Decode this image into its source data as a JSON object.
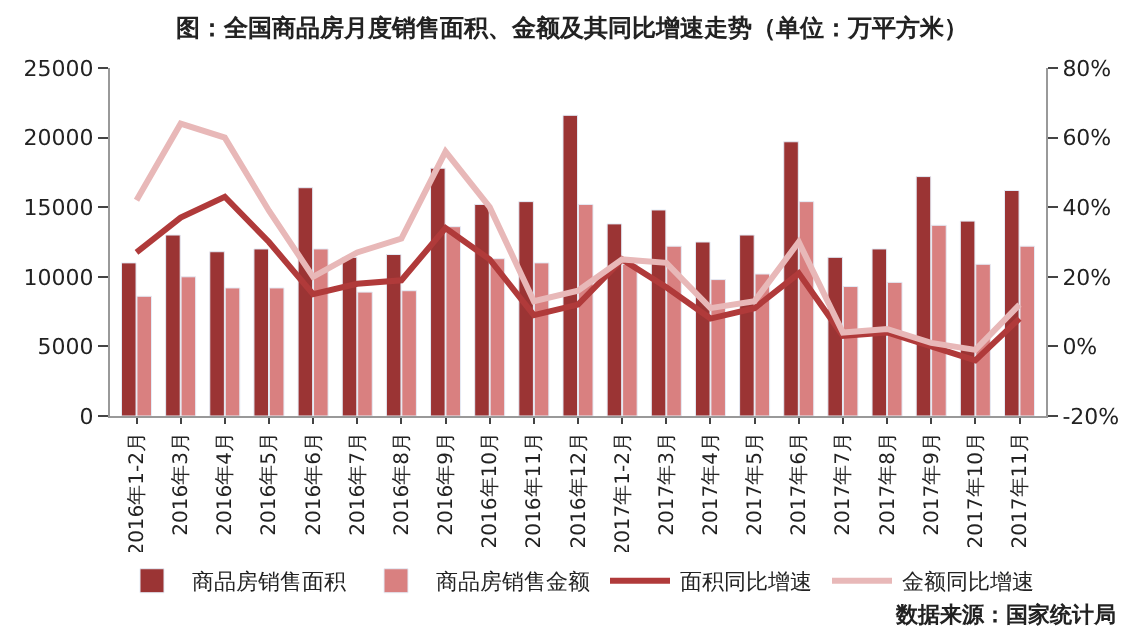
{
  "chart_data": {
    "type": "bar",
    "title": "图：全国商品房月度销售面积、金额及其同比增速走势（单位：万平方米）",
    "categories": [
      "2016年1-2月",
      "2016年3月",
      "2016年4月",
      "2016年5月",
      "2016年6月",
      "2016年7月",
      "2016年8月",
      "2016年9月",
      "2016年10月",
      "2016年11月",
      "2016年12月",
      "2017年1-2月",
      "2017年3月",
      "2017年4月",
      "2017年5月",
      "2017年6月",
      "2017年7月",
      "2017年8月",
      "2017年9月",
      "2017年10月",
      "2017年11月"
    ],
    "series": [
      {
        "name": "商品房销售面积",
        "color": "#9b3434",
        "values": [
          11000,
          13000,
          11800,
          12000,
          16400,
          11400,
          11600,
          17800,
          15200,
          15400,
          21600,
          13800,
          14800,
          12500,
          13000,
          19700,
          11400,
          12000,
          17200,
          14000,
          16200
        ]
      },
      {
        "name": "商品房销售金额",
        "color": "#d98080",
        "values": [
          8600,
          10000,
          9200,
          9200,
          12000,
          8900,
          9000,
          13600,
          11300,
          11000,
          15200,
          10900,
          12200,
          9800,
          10200,
          15400,
          9300,
          9600,
          13700,
          10900,
          12200
        ]
      },
      {
        "name": "面积同比增速",
        "type": "line",
        "axis": "y2",
        "color": "#b03a3a",
        "values": [
          27,
          37,
          43,
          30,
          15,
          18,
          19,
          34,
          25,
          9,
          12,
          25,
          17,
          8,
          11,
          21,
          3,
          4,
          0,
          -4,
          8
        ]
      },
      {
        "name": "金额同比增速",
        "type": "line",
        "axis": "y2",
        "color": "#e8b8b8",
        "values": [
          42,
          64,
          60,
          39,
          20,
          27,
          31,
          56,
          40,
          13,
          16,
          25,
          24,
          11,
          13,
          30,
          4,
          5,
          1,
          -1,
          12
        ]
      }
    ],
    "ylim": [
      0,
      25000
    ],
    "yticks": [
      0,
      5000,
      10000,
      15000,
      20000,
      25000
    ],
    "y2lim": [
      -20,
      80
    ],
    "y2ticks": [
      {
        "value": -20,
        "label": "-20%"
      },
      {
        "value": 0,
        "label": "0%"
      },
      {
        "value": 20,
        "label": "20%"
      },
      {
        "value": 40,
        "label": "40%"
      },
      {
        "value": 60,
        "label": "60%"
      },
      {
        "value": 80,
        "label": "80%"
      }
    ],
    "legend": "bottom",
    "marker": "none",
    "line_style": "solid",
    "annotations": [
      "数据来源：国家统计局"
    ]
  }
}
